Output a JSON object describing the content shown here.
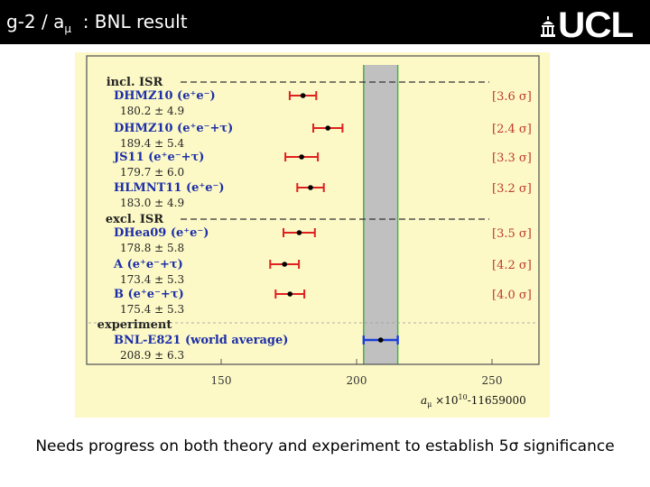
{
  "slide": {
    "title_main": "g-2 / a",
    "title_sub": "μ",
    "title_rest": "  : BNL result",
    "logo_text": "UCL",
    "caption": "Needs progress on both theory and experiment to establish 5σ significance"
  },
  "chart_data": {
    "type": "scatter",
    "orientation": "horizontal",
    "xlabel_parts": [
      "a",
      "μ",
      " ×10",
      "10",
      "-11659000"
    ],
    "xlim": [
      115,
      275
    ],
    "xticks": [
      150,
      200,
      250
    ],
    "band": {
      "min": 202.6,
      "max": 215.2,
      "color": "#c0c0c0",
      "edge": "#4caf50"
    },
    "groups": [
      {
        "label": "incl. ISR",
        "dashed_line": true
      },
      {
        "label": "excl. ISR",
        "dashed_line": true
      },
      {
        "label": "experiment",
        "dashed_line": false
      }
    ],
    "series": [
      {
        "name": "DHMZ10 (e⁺e⁻)",
        "value_text": "180.2 ± 4.9",
        "value": 180.2,
        "error": 4.9,
        "sigma": "[3.6 σ]",
        "group": 0,
        "color": "#e02020"
      },
      {
        "name": "DHMZ10 (e⁺e⁻+τ)",
        "value_text": "189.4 ± 5.4",
        "value": 189.4,
        "error": 5.4,
        "sigma": "[2.4 σ]",
        "group": 0,
        "color": "#e02020"
      },
      {
        "name": "JS11 (e⁺e⁻+τ)",
        "value_text": "179.7 ± 6.0",
        "value": 179.7,
        "error": 6.0,
        "sigma": "[3.3 σ]",
        "group": 0,
        "color": "#e02020"
      },
      {
        "name": "HLMNT11 (e⁺e⁻)",
        "value_text": "183.0 ± 4.9",
        "value": 183.0,
        "error": 4.9,
        "sigma": "[3.2 σ]",
        "group": 0,
        "color": "#e02020"
      },
      {
        "name": "DHea09 (e⁺e⁻)",
        "value_text": "178.8 ± 5.8",
        "value": 178.8,
        "error": 5.8,
        "sigma": "[3.5 σ]",
        "group": 1,
        "color": "#e02020"
      },
      {
        "name": "A (e⁺e⁻+τ)",
        "value_text": "173.4 ± 5.3",
        "value": 173.4,
        "error": 5.3,
        "sigma": "[4.2 σ]",
        "group": 1,
        "color": "#e02020"
      },
      {
        "name": "B (e⁺e⁻+τ)",
        "value_text": "175.4 ± 5.3",
        "value": 175.4,
        "error": 5.3,
        "sigma": "[4.0 σ]",
        "group": 1,
        "color": "#e02020"
      },
      {
        "name": "BNL-E821 (world average)",
        "value_text": "208.9 ± 6.3",
        "value": 208.9,
        "error": 6.3,
        "sigma": "",
        "group": 2,
        "color": "#1a3fd6"
      }
    ],
    "colors": {
      "background": "#fcf9c6",
      "frame": "#5a5a5a",
      "names": "#1c2ea8",
      "sigma": "#c0392b"
    }
  }
}
